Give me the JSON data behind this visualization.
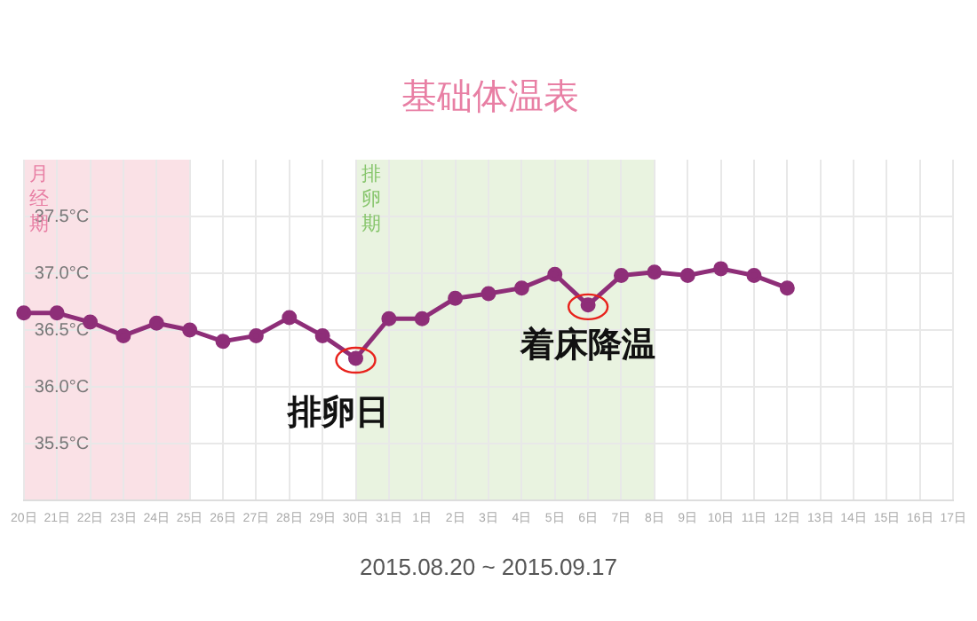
{
  "chart_data": {
    "type": "line",
    "title": "基础体温表",
    "xlabel": "2015.08.20 ~ 2015.09.17",
    "categories": [
      "20日",
      "21日",
      "22日",
      "23日",
      "24日",
      "25日",
      "26日",
      "27日",
      "28日",
      "29日",
      "30日",
      "31日",
      "1日",
      "2日",
      "3日",
      "4日",
      "5日",
      "6日",
      "7日",
      "8日",
      "9日",
      "10日",
      "11日",
      "12日",
      "13日",
      "14日",
      "15日",
      "16日",
      "17日"
    ],
    "series": [
      {
        "color": "#8e2e78",
        "values": [
          36.65,
          36.65,
          36.57,
          36.45,
          36.56,
          36.5,
          36.4,
          36.45,
          36.61,
          36.45,
          36.25,
          36.6,
          36.6,
          36.78,
          36.82,
          36.87,
          36.99,
          36.72,
          36.98,
          37.01,
          36.98,
          37.04,
          36.98,
          36.87,
          null,
          null,
          null,
          null,
          null
        ]
      }
    ],
    "ylim": [
      35,
      38
    ],
    "yticks": [
      {
        "value": 35.5,
        "label": "35.5°C"
      },
      {
        "value": 36,
        "label": "36.0°C"
      },
      {
        "value": 36.5,
        "label": "36.5°C"
      },
      {
        "value": 37,
        "label": "37.0°C"
      },
      {
        "value": 37.5,
        "label": "37.5°C"
      }
    ],
    "bands": [
      {
        "axis": "x",
        "from": "20日",
        "to": "25日",
        "label": "月经期",
        "color": "#f8d7de"
      },
      {
        "axis": "x",
        "from": "30日",
        "to": "8日",
        "label": "排卵期",
        "color": "#e2efd6"
      }
    ],
    "annotations": [
      {
        "text": "排卵日",
        "x": "30日",
        "y": 36.25
      },
      {
        "text": "着床降温",
        "x": "6日",
        "y": 36.72
      }
    ],
    "grid": true,
    "legend": false,
    "marker": "circle",
    "line_style": "solid"
  }
}
